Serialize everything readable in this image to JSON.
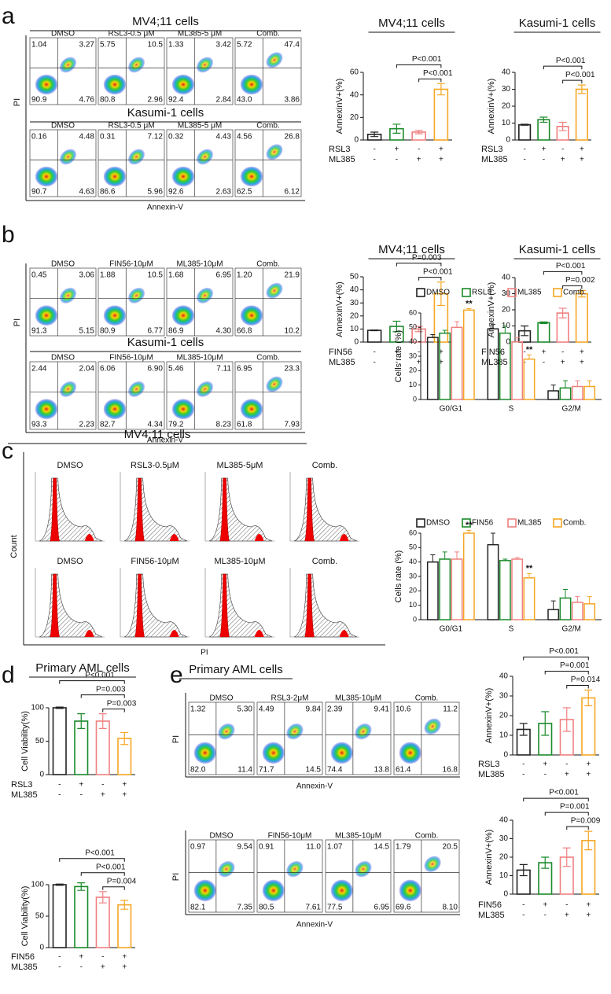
{
  "panel_a": {
    "label": "a",
    "flow": {
      "y_label": "PI",
      "x_label": "Annexin-V",
      "rows": [
        {
          "title": "MV4;11 cells",
          "plots": [
            {
              "name": "DMSO",
              "ul": "1.04",
              "ur": "3.27",
              "ll": "90.9",
              "lr": "4.76"
            },
            {
              "name": "RSL3-0.5 μM",
              "ul": "5.75",
              "ur": "10.5",
              "ll": "80.8",
              "lr": "2.96"
            },
            {
              "name": "ML385-5 μM",
              "ul": "1.33",
              "ur": "3.42",
              "ll": "92.4",
              "lr": "2.84"
            },
            {
              "name": "Comb.",
              "ul": "5.72",
              "ur": "47.4",
              "ll": "43.0",
              "lr": "3.86"
            }
          ]
        },
        {
          "title": "Kasumi-1 cells",
          "plots": [
            {
              "name": "DMSO",
              "ul": "0.16",
              "ur": "4.48",
              "ll": "90.7",
              "lr": "4.63"
            },
            {
              "name": "RSL3-0.5 μM",
              "ul": "0.31",
              "ur": "7.12",
              "ll": "86.6",
              "lr": "5.96"
            },
            {
              "name": "ML385-5 μM",
              "ul": "0.32",
              "ur": "4.43",
              "ll": "92.6",
              "lr": "2.63"
            },
            {
              "name": "Comb.",
              "ul": "4.56",
              "ur": "26.8",
              "ll": "62.5",
              "lr": "6.12"
            }
          ]
        }
      ]
    },
    "charts": [
      {
        "type": "bar",
        "title": "MV4;11 cells",
        "y_label": "AnnexinV+(%)",
        "ylim": [
          0,
          60
        ],
        "yticks": [
          0,
          20,
          40,
          60
        ],
        "values": [
          5,
          10,
          7,
          45
        ],
        "errors": [
          2,
          4,
          1.5,
          5
        ],
        "colors": [
          "#222222",
          "#1a8a2a",
          "#f08080",
          "#f5a623"
        ],
        "significance": [
          "P<0.001",
          "P<0.001"
        ],
        "treatments": [
          {
            "name": "RSL3",
            "signs": [
              "-",
              "+",
              "-",
              "+"
            ]
          },
          {
            "name": "ML385",
            "signs": [
              "-",
              "-",
              "+",
              "+"
            ]
          }
        ]
      },
      {
        "type": "bar",
        "title": "Kasumi-1 cells",
        "y_label": "AnnexinV+(%)",
        "ylim": [
          0,
          40
        ],
        "yticks": [
          0,
          10,
          20,
          30,
          40
        ],
        "values": [
          9,
          12,
          8,
          30
        ],
        "errors": [
          0.3,
          1.5,
          2.5,
          2.5
        ],
        "colors": [
          "#222222",
          "#1a8a2a",
          "#f08080",
          "#f5a623"
        ],
        "significance": [
          "P<0.001",
          "P<0.001"
        ],
        "treatments": [
          {
            "name": "RSL3",
            "signs": [
              "-",
              "+",
              "-",
              "+"
            ]
          },
          {
            "name": "ML385",
            "signs": [
              "-",
              "-",
              "+",
              "+"
            ]
          }
        ]
      }
    ]
  },
  "panel_b": {
    "label": "b",
    "flow": {
      "y_label": "PI",
      "x_label": "Annexin-V",
      "rows": [
        {
          "plots": [
            {
              "name": "DMSO",
              "ul": "0.45",
              "ur": "3.06",
              "ll": "91.3",
              "lr": "5.15"
            },
            {
              "name": "FIN56-10μM",
              "ul": "1.88",
              "ur": "10.5",
              "ll": "80.9",
              "lr": "6.77"
            },
            {
              "name": "ML385-10μM",
              "ul": "1.68",
              "ur": "6.95",
              "ll": "86.9",
              "lr": "4.30"
            },
            {
              "name": "Comb.",
              "ul": "1.20",
              "ur": "21.9",
              "ll": "66.8",
              "lr": "10.2"
            }
          ]
        },
        {
          "title": "Kasumi-1 cells",
          "plots": [
            {
              "name": "DMSO",
              "ul": "2.44",
              "ur": "2.04",
              "ll": "93.3",
              "lr": "2.23"
            },
            {
              "name": "FIN56-10μM",
              "ul": "6.06",
              "ur": "6.90",
              "ll": "82.7",
              "lr": "4.34"
            },
            {
              "name": "ML385-10μM",
              "ul": "5.46",
              "ur": "7.11",
              "ll": "79.2",
              "lr": "8.23"
            },
            {
              "name": "Comb.",
              "ul": "6.95",
              "ur": "23.3",
              "ll": "61.8",
              "lr": "7.93"
            }
          ]
        }
      ]
    },
    "charts": [
      {
        "type": "bar",
        "title": "MV4;11 cells",
        "y_label": "AnnexinV+(%)",
        "ylim": [
          0,
          50
        ],
        "yticks": [
          0,
          10,
          20,
          30,
          40,
          50
        ],
        "values": [
          9,
          12,
          10,
          37
        ],
        "errors": [
          0.3,
          4,
          2,
          9
        ],
        "colors": [
          "#222222",
          "#1a8a2a",
          "#f08080",
          "#f5a623"
        ],
        "significance": [
          "P=0.003",
          "P<0.001"
        ],
        "treatments": [
          {
            "name": "FIN56",
            "signs": [
              "-",
              "+",
              "-",
              "+"
            ]
          },
          {
            "name": "ML385",
            "signs": [
              "-",
              "-",
              "+",
              "+"
            ]
          }
        ]
      },
      {
        "type": "bar",
        "title": "Kasumi-1 cells",
        "y_label": "AnnexinV+(%)",
        "ylim": [
          0,
          40
        ],
        "yticks": [
          0,
          10,
          20,
          30,
          40
        ],
        "values": [
          7,
          12,
          18,
          30
        ],
        "errors": [
          3,
          0.5,
          3,
          2
        ],
        "colors": [
          "#222222",
          "#1a8a2a",
          "#f08080",
          "#f5a623"
        ],
        "significance": [
          "P<0.001",
          "P=0.002"
        ],
        "treatments": [
          {
            "name": "FIN56",
            "signs": [
              "-",
              "+",
              "-",
              "+"
            ]
          },
          {
            "name": "ML385",
            "signs": [
              "-",
              "-",
              "+",
              "+"
            ]
          }
        ]
      }
    ]
  },
  "panel_c": {
    "label": "c",
    "title": "MV4;11 cells",
    "y_label": "Count",
    "x_label": "PI",
    "rows": [
      [
        "DMSO",
        "RSL3-0.5μM",
        "ML385-5μM",
        "Comb."
      ],
      [
        "DMSO",
        "FIN56-10μM",
        "ML385-10μM",
        "Comb."
      ]
    ],
    "charts": [
      {
        "type": "grouped_bar",
        "y_label": "Cells rate (%)",
        "ylim": [
          0,
          60
        ],
        "yticks": [
          0,
          10,
          20,
          30,
          40,
          50,
          60
        ],
        "categories": [
          "G0/G1",
          "S",
          "G2/M"
        ],
        "series": [
          {
            "name": "DMSO",
            "color": "#222222",
            "values": [
              43,
              49,
              6
            ],
            "errors": [
              2,
              3,
              4
            ]
          },
          {
            "name": "RSL3",
            "color": "#1a8a2a",
            "values": [
              46,
              46,
              8
            ],
            "errors": [
              2,
              5,
              5
            ]
          },
          {
            "name": "ML385",
            "color": "#f08080",
            "values": [
              50,
              40,
              9
            ],
            "errors": [
              4,
              3,
              4
            ]
          },
          {
            "name": "Comb.",
            "color": "#f5a623",
            "values": [
              62,
              28,
              9
            ],
            "errors": [
              1,
              3,
              4
            ],
            "annotations": [
              "**",
              "**",
              null
            ]
          }
        ]
      },
      {
        "type": "grouped_bar",
        "y_label": "Cells rate (%)",
        "ylim": [
          0,
          60
        ],
        "yticks": [
          0,
          10,
          20,
          30,
          40,
          50,
          60
        ],
        "categories": [
          "G0/G1",
          "S",
          "G2/M"
        ],
        "series": [
          {
            "name": "DMSO",
            "color": "#222222",
            "values": [
              40,
              52,
              7
            ],
            "errors": [
              5,
              8,
              6
            ]
          },
          {
            "name": "FIN56",
            "color": "#1a8a2a",
            "values": [
              42,
              41,
              15
            ],
            "errors": [
              5,
              1,
              6
            ]
          },
          {
            "name": "ML385",
            "color": "#f08080",
            "values": [
              42,
              42,
              12
            ],
            "errors": [
              5,
              1,
              4
            ]
          },
          {
            "name": "Comb.",
            "color": "#f5a623",
            "values": [
              60,
              29,
              11
            ],
            "errors": [
              2,
              3,
              5
            ],
            "annotations": [
              "**",
              "**",
              null
            ]
          }
        ]
      }
    ]
  },
  "panel_d": {
    "label": "d",
    "title": "Primary AML cells",
    "charts": [
      {
        "type": "bar",
        "y_label": "Cell Viability(%)",
        "ylim": [
          0,
          100
        ],
        "yticks": [
          0,
          50,
          100
        ],
        "values": [
          100,
          80,
          80,
          54
        ],
        "errors": [
          1,
          11,
          11,
          9
        ],
        "colors": [
          "#222222",
          "#1a8a2a",
          "#f08080",
          "#f5a623"
        ],
        "significance": [
          "P<0.001",
          "P=0.003",
          "P=0.003"
        ],
        "treatments": [
          {
            "name": "RSL3",
            "signs": [
              "-",
              "+",
              "-",
              "+"
            ]
          },
          {
            "name": "ML385",
            "signs": [
              "-",
              "-",
              "+",
              "+"
            ]
          }
        ]
      },
      {
        "type": "bar",
        "y_label": "Cell Viability(%)",
        "ylim": [
          0,
          100
        ],
        "yticks": [
          0,
          50,
          100
        ],
        "values": [
          100,
          97,
          80,
          68
        ],
        "errors": [
          1,
          6,
          9,
          7
        ],
        "colors": [
          "#222222",
          "#1a8a2a",
          "#f08080",
          "#f5a623"
        ],
        "significance": [
          "P<0.001",
          "P<0.001",
          "P=0.004"
        ],
        "treatments": [
          {
            "name": "FIN56",
            "signs": [
              "-",
              "+",
              "-",
              "+"
            ]
          },
          {
            "name": "ML385",
            "signs": [
              "-",
              "-",
              "+",
              "+"
            ]
          }
        ]
      }
    ]
  },
  "panel_e": {
    "label": "e",
    "title": "Primary AML cells",
    "flow": {
      "y_label": "PI",
      "x_label": "Annexin-V",
      "rows": [
        {
          "plots": [
            {
              "name": "DMSO",
              "ul": "1.32",
              "ur": "5.30",
              "ll": "82.0",
              "lr": "11.4"
            },
            {
              "name": "RSL3-2μM",
              "ul": "4.49",
              "ur": "9.84",
              "ll": "71.7",
              "lr": "14.5"
            },
            {
              "name": "ML385-10μM",
              "ul": "2.39",
              "ur": "9.41",
              "ll": "74.4",
              "lr": "13.8"
            },
            {
              "name": "Comb.",
              "ul": "10.6",
              "ur": "11.2",
              "ll": "61.4",
              "lr": "16.8"
            }
          ]
        },
        {
          "plots": [
            {
              "name": "DMSO",
              "ul": "0.97",
              "ur": "9.54",
              "ll": "82.1",
              "lr": "7.35"
            },
            {
              "name": "FIN56-10μM",
              "ul": "0.91",
              "ur": "11.0",
              "ll": "80.5",
              "lr": "7.61"
            },
            {
              "name": "ML385-10μM",
              "ul": "1.07",
              "ur": "14.5",
              "ll": "77.5",
              "lr": "6.95"
            },
            {
              "name": "Comb.",
              "ul": "1.79",
              "ur": "20.5",
              "ll": "69.6",
              "lr": "8.10"
            }
          ]
        }
      ]
    },
    "charts": [
      {
        "type": "bar",
        "y_label": "AnnexinV+(%)",
        "ylim": [
          0,
          40
        ],
        "yticks": [
          0,
          10,
          20,
          30,
          40
        ],
        "values": [
          13,
          16,
          18,
          29
        ],
        "errors": [
          3,
          6,
          6,
          4
        ],
        "colors": [
          "#222222",
          "#1a8a2a",
          "#f08080",
          "#f5a623"
        ],
        "significance": [
          "P<0.001",
          "P=0.001",
          "P=0.014"
        ],
        "treatments": [
          {
            "name": "RSL3",
            "signs": [
              "-",
              "+",
              "-",
              "+"
            ]
          },
          {
            "name": "ML385",
            "signs": [
              "-",
              "-",
              "+",
              "+"
            ]
          }
        ]
      },
      {
        "type": "bar",
        "y_label": "AnnexinV+(%)",
        "ylim": [
          0,
          40
        ],
        "yticks": [
          0,
          10,
          20,
          30,
          40
        ],
        "values": [
          13,
          17,
          20,
          29
        ],
        "errors": [
          3,
          3,
          5,
          5
        ],
        "colors": [
          "#222222",
          "#1a8a2a",
          "#f08080",
          "#f5a623"
        ],
        "significance": [
          "P<0.001",
          "P=0.001",
          "P=0.009"
        ],
        "treatments": [
          {
            "name": "FIN56",
            "signs": [
              "-",
              "+",
              "-",
              "+"
            ]
          },
          {
            "name": "ML385",
            "signs": [
              "-",
              "-",
              "+",
              "+"
            ]
          }
        ]
      }
    ]
  }
}
